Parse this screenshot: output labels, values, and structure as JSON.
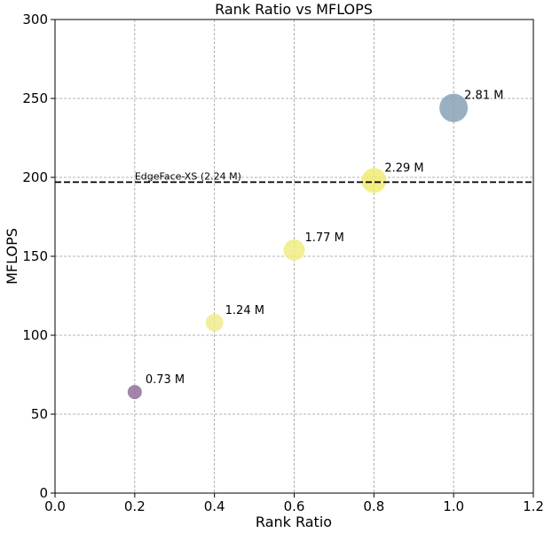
{
  "chart_data": {
    "type": "scatter",
    "title": "Rank Ratio vs MFLOPS",
    "xlabel": "Rank Ratio",
    "ylabel": "MFLOPS",
    "xlim": [
      0.0,
      1.2
    ],
    "ylim": [
      0,
      300
    ],
    "xticks": [
      "0.0",
      "0.2",
      "0.4",
      "0.6",
      "0.8",
      "1.0",
      "1.2"
    ],
    "yticks": [
      "0",
      "50",
      "100",
      "150",
      "200",
      "250",
      "300"
    ],
    "grid": true,
    "points": [
      {
        "x": 0.2,
        "y": 64,
        "label": "0.73 M",
        "params_m": 0.73,
        "color": "#8e6a96"
      },
      {
        "x": 0.4,
        "y": 108,
        "label": "1.24 M",
        "params_m": 1.24,
        "color": "#eeeb8a"
      },
      {
        "x": 0.6,
        "y": 154,
        "label": "1.77 M",
        "params_m": 1.77,
        "color": "#f0ec7c"
      },
      {
        "x": 0.8,
        "y": 198,
        "label": "2.29 M",
        "params_m": 2.29,
        "color": "#f0ec6e"
      },
      {
        "x": 1.0,
        "y": 244,
        "label": "2.81 M",
        "params_m": 2.81,
        "color": "#849fb3"
      }
    ],
    "reference_line": {
      "y": 197,
      "label": "EdgeFace-XS (2.24 M)",
      "style": "dashed"
    }
  }
}
